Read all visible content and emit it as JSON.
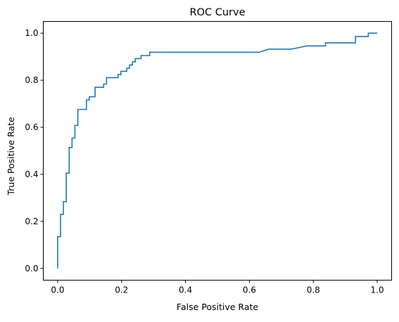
{
  "chart_data": {
    "type": "line",
    "title": "ROC Curve",
    "xlabel": "False Positive Rate",
    "ylabel": "True Positive Rate",
    "xlim": [
      -0.045,
      1.045
    ],
    "ylim": [
      -0.05,
      1.05
    ],
    "x_ticks": [
      0.0,
      0.2,
      0.4,
      0.6,
      0.8,
      1.0
    ],
    "x_tick_labels": [
      "0.0",
      "0.2",
      "0.4",
      "0.6",
      "0.8",
      "1.0"
    ],
    "y_ticks": [
      0.0,
      0.2,
      0.4,
      0.6,
      0.8,
      1.0
    ],
    "y_tick_labels": [
      "0.0",
      "0.2",
      "0.4",
      "0.6",
      "0.8",
      "1.0"
    ],
    "grid": false,
    "legend": false,
    "series": [
      {
        "color": "#1f77b4",
        "step": true,
        "x": [
          0.0,
          0.0,
          0.009,
          0.009,
          0.018,
          0.018,
          0.027,
          0.027,
          0.036,
          0.036,
          0.045,
          0.045,
          0.054,
          0.054,
          0.063,
          0.063,
          0.072,
          0.072,
          0.09,
          0.09,
          0.099,
          0.099,
          0.117,
          0.117,
          0.144,
          0.144,
          0.153,
          0.153,
          0.189,
          0.189,
          0.198,
          0.198,
          0.216,
          0.216,
          0.225,
          0.225,
          0.234,
          0.234,
          0.243,
          0.243,
          0.261,
          0.261,
          0.288,
          0.288,
          0.297,
          0.297,
          0.63,
          0.66,
          0.73,
          0.78,
          0.838,
          0.838,
          0.932,
          0.932,
          0.972,
          0.972,
          1.0
        ],
        "y": [
          0.0,
          0.135,
          0.135,
          0.23,
          0.23,
          0.284,
          0.284,
          0.405,
          0.405,
          0.514,
          0.514,
          0.554,
          0.554,
          0.608,
          0.608,
          0.676,
          0.676,
          0.676,
          0.676,
          0.716,
          0.716,
          0.73,
          0.73,
          0.77,
          0.77,
          0.784,
          0.784,
          0.811,
          0.811,
          0.824,
          0.824,
          0.838,
          0.838,
          0.851,
          0.851,
          0.865,
          0.865,
          0.878,
          0.878,
          0.892,
          0.892,
          0.905,
          0.905,
          0.919,
          0.919,
          0.919,
          0.919,
          0.932,
          0.932,
          0.946,
          0.946,
          0.959,
          0.959,
          0.986,
          0.986,
          1.0,
          1.0
        ]
      }
    ]
  }
}
